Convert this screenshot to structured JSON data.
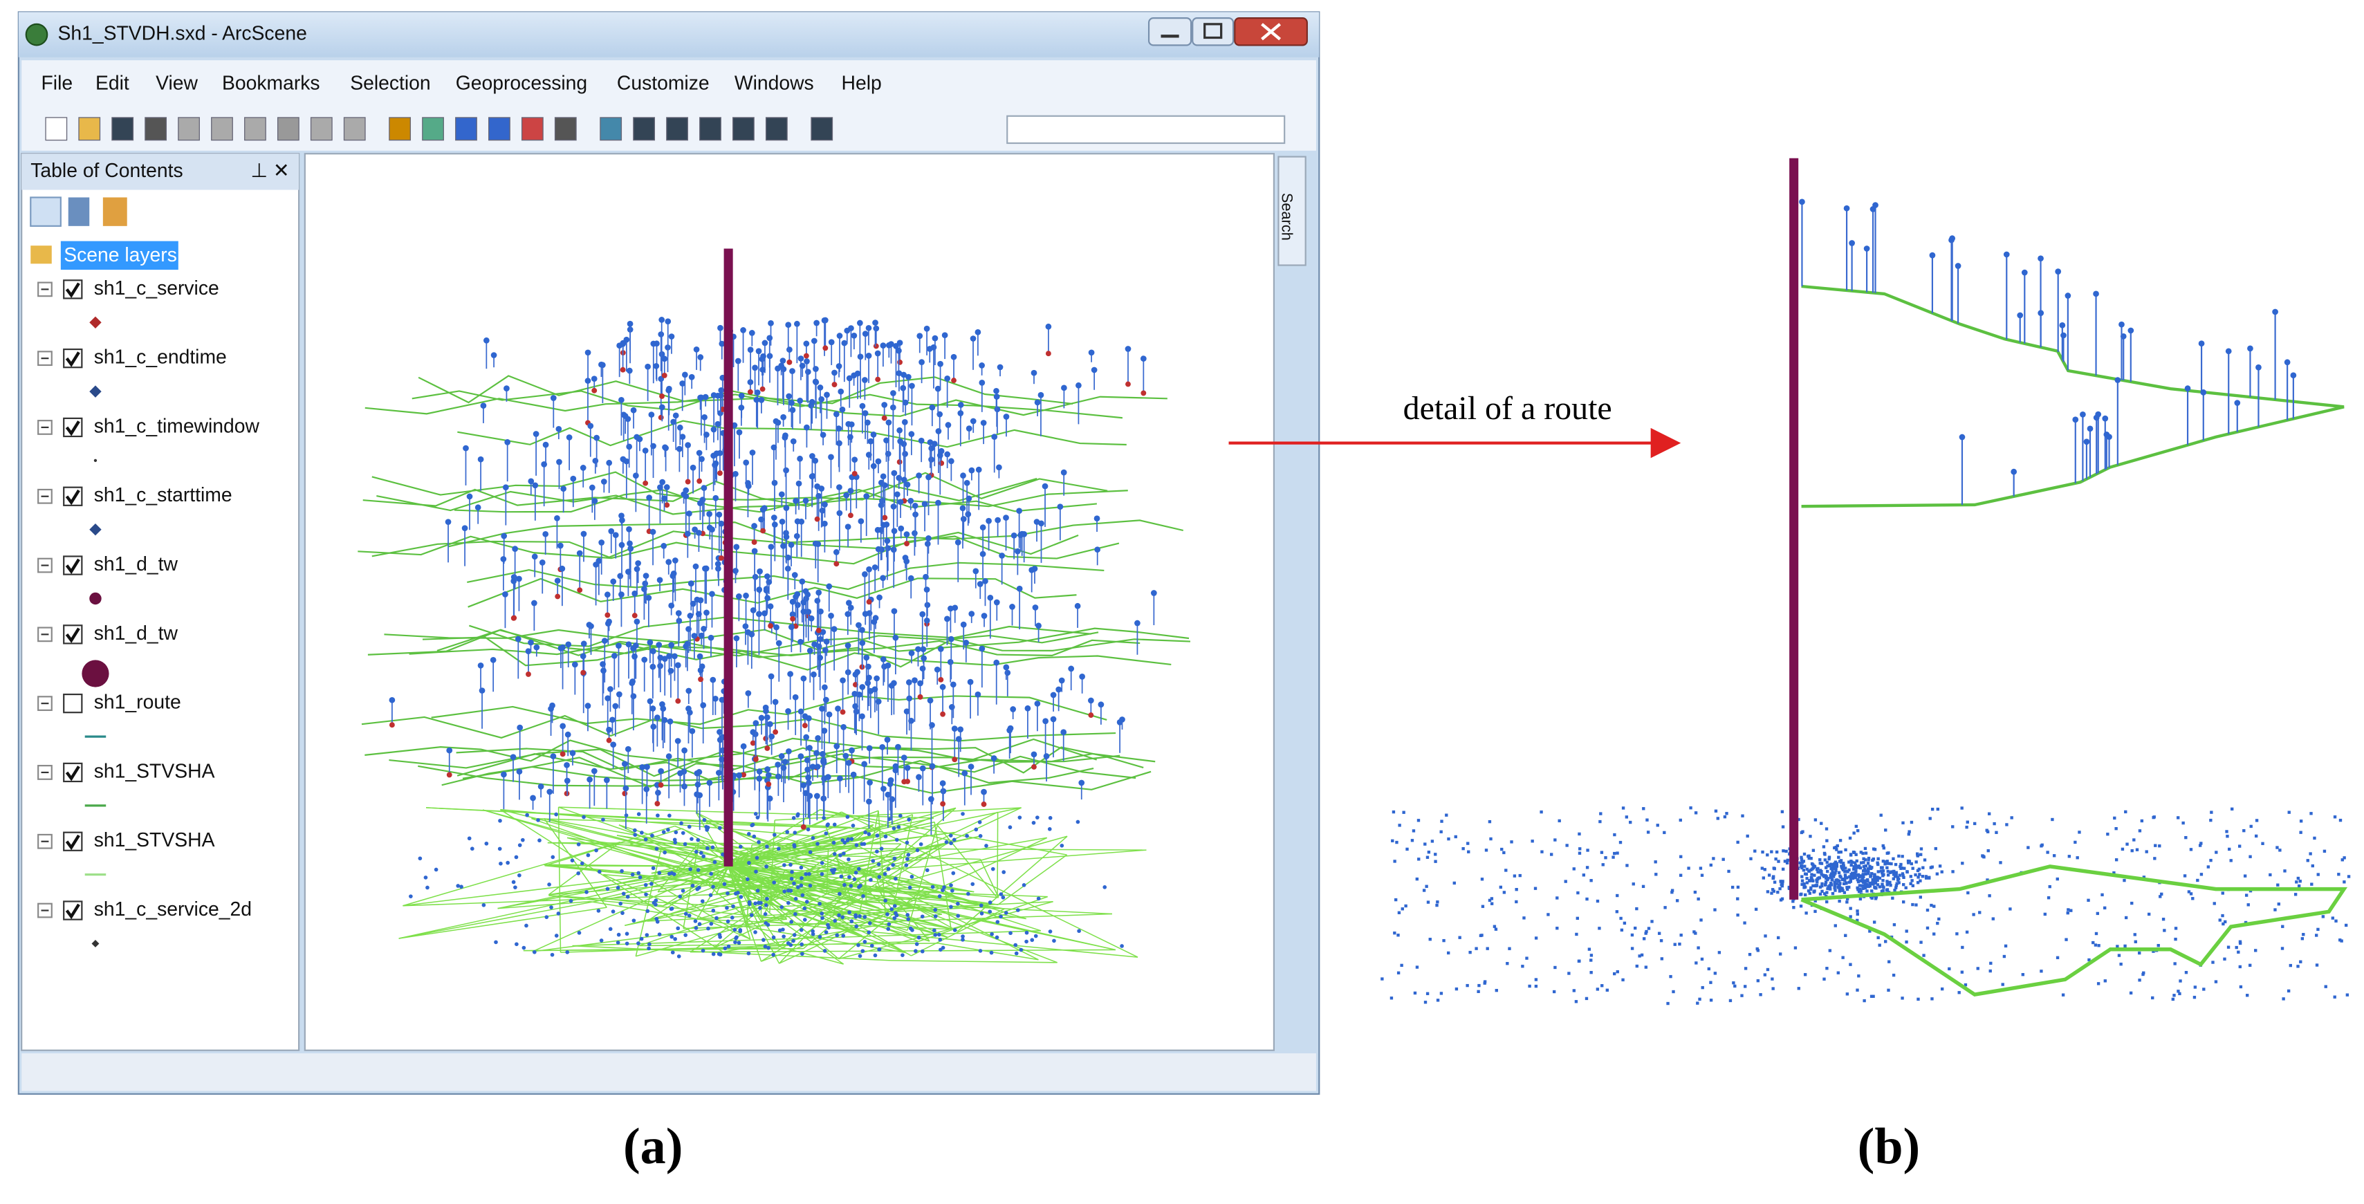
{
  "window": {
    "title": "Sh1_STVDH.sxd - ArcScene"
  },
  "menu": [
    "File",
    "Edit",
    "View",
    "Bookmarks",
    "Selection",
    "Geoprocessing",
    "Customize",
    "Windows",
    "Help"
  ],
  "toc": {
    "title": "Table of Contents",
    "root": "Scene layers",
    "layers": [
      {
        "name": "sh1_c_service",
        "checked": true
      },
      {
        "name": "sh1_c_endtime",
        "checked": true
      },
      {
        "name": "sh1_c_timewindow",
        "checked": true
      },
      {
        "name": "sh1_c_starttime",
        "checked": true
      },
      {
        "name": "sh1_d_tw",
        "checked": true
      },
      {
        "name": "sh1_d_tw",
        "checked": true
      },
      {
        "name": "sh1_route",
        "checked": false
      },
      {
        "name": "sh1_STVSHA",
        "checked": true
      },
      {
        "name": "sh1_STVSHA",
        "checked": true
      },
      {
        "name": "sh1_c_service_2d",
        "checked": true
      }
    ]
  },
  "search_tab": "Search",
  "annotation": "detail of a route",
  "panels": [
    "(a)",
    "(b)"
  ]
}
